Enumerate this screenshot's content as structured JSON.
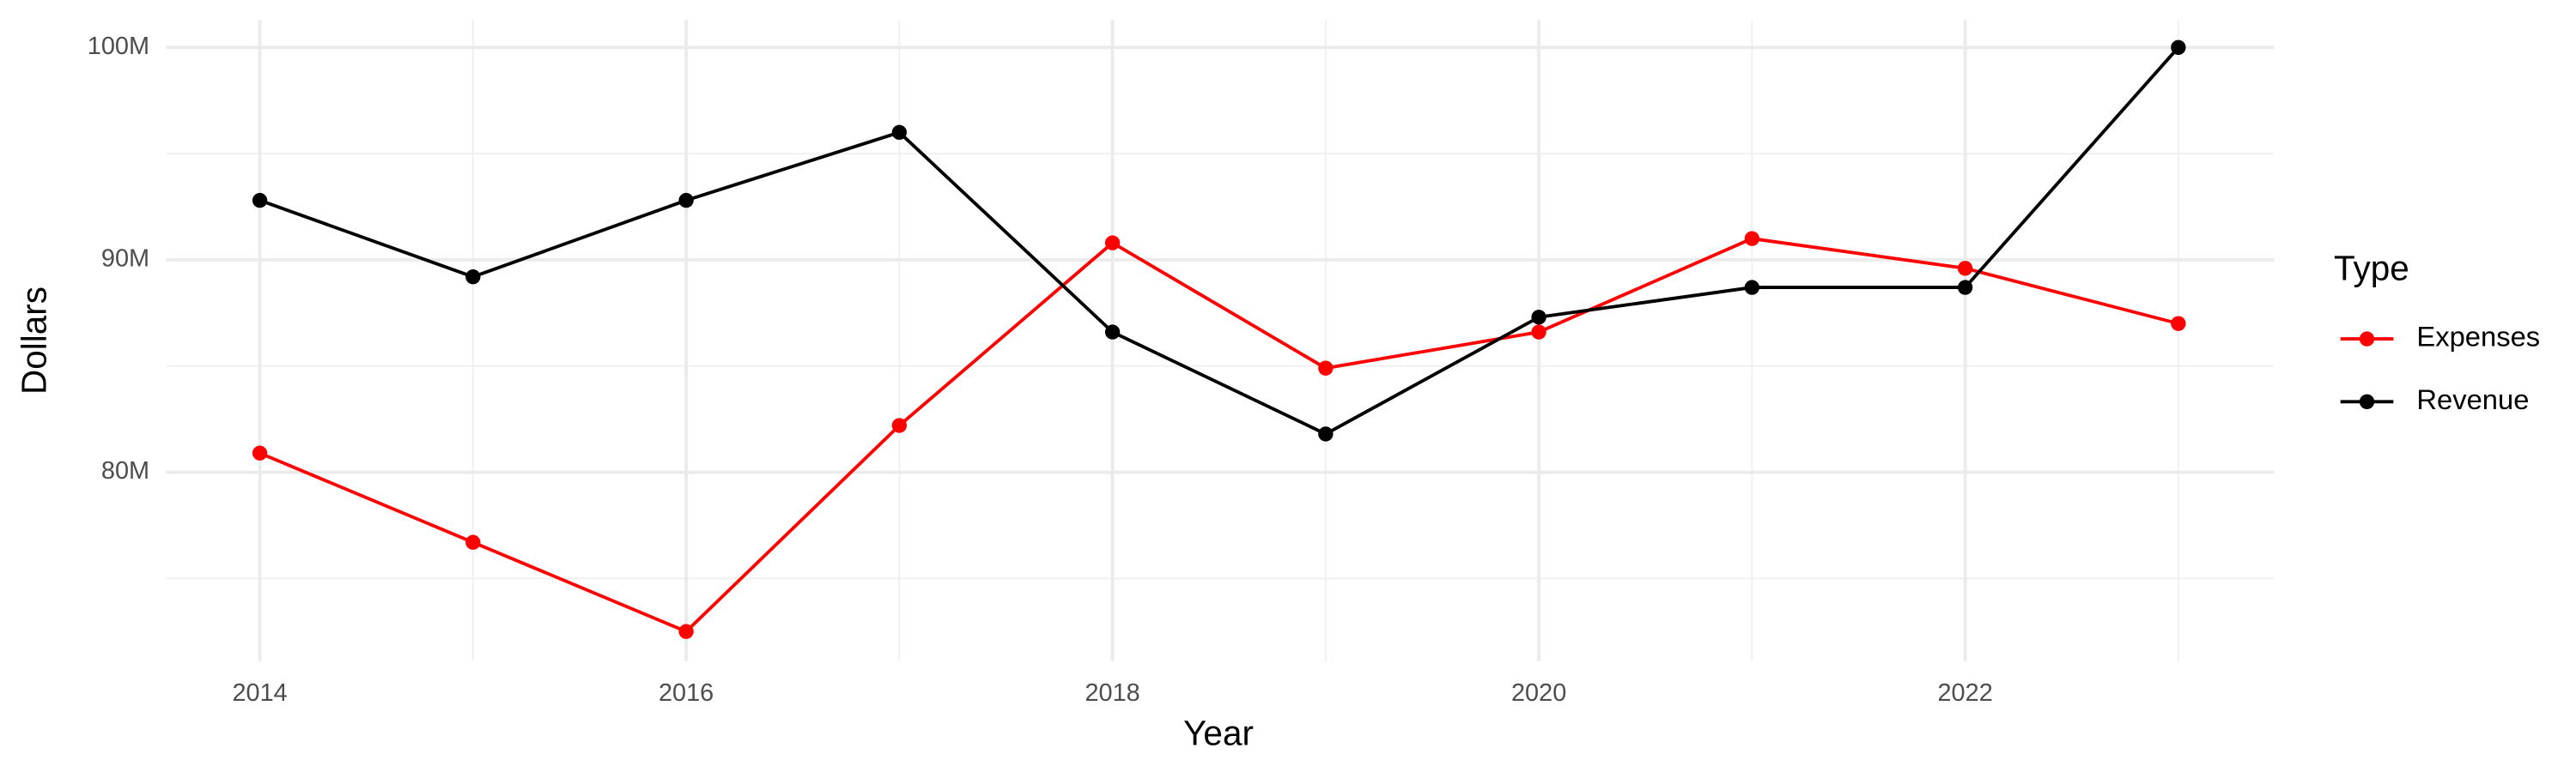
{
  "chart_data": {
    "type": "line",
    "x_label": "Year",
    "y_label": "Dollars",
    "x": [
      2014,
      2015,
      2016,
      2017,
      2018,
      2019,
      2020,
      2021,
      2022,
      2023
    ],
    "series": [
      {
        "name": "Expenses",
        "color": "#ff0000",
        "values": [
          80900000,
          76700000,
          72500000,
          82200000,
          90800000,
          84900000,
          86600000,
          91000000,
          89600000,
          87000000
        ]
      },
      {
        "name": "Revenue",
        "color": "#000000",
        "values": [
          92800000,
          89200000,
          92800000,
          96000000,
          86600000,
          81800000,
          87300000,
          88700000,
          88700000,
          100000000
        ]
      }
    ],
    "xlim": [
      2013.56,
      2023.45
    ],
    "ylim": [
      71100000,
      101300000
    ],
    "xticks": [
      2014,
      2016,
      2018,
      2020,
      2022
    ],
    "x_minor_ticks": [
      2015,
      2017,
      2019,
      2021,
      2023
    ],
    "yticks": [
      {
        "value": 80000000,
        "label": "80M"
      },
      {
        "value": 90000000,
        "label": "90M"
      },
      {
        "value": 100000000,
        "label": "100M"
      }
    ],
    "y_minor_ticks": [
      75000000,
      85000000,
      95000000
    ],
    "grid": true,
    "legend_title": "Type",
    "legend_position": "right"
  }
}
